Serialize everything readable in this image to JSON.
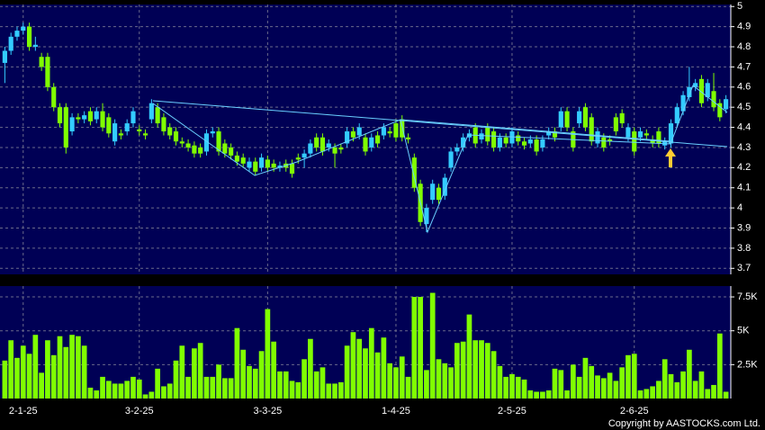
{
  "chart_data": [
    {
      "type": "candlestick",
      "open": [
        4.72,
        4.78,
        4.85,
        4.88,
        4.9,
        4.8,
        4.75,
        4.75,
        4.6,
        4.5,
        4.5,
        4.38,
        4.45,
        4.44,
        4.48,
        4.44,
        4.48,
        4.45,
        4.33,
        4.37,
        4.38,
        4.42,
        4.39,
        4.37,
        4.44,
        4.5,
        4.45,
        4.4,
        4.38,
        4.33,
        4.32,
        4.31,
        4.3,
        4.28,
        4.37,
        4.38,
        4.32,
        4.3,
        4.26,
        4.25,
        4.2,
        4.23,
        4.2,
        4.24,
        4.22,
        4.2,
        4.22,
        4.22,
        4.25,
        4.25,
        4.27,
        4.35,
        4.35,
        4.3,
        4.3,
        4.3,
        4.32,
        4.38,
        4.36,
        4.35,
        4.3,
        4.36,
        4.36,
        4.38,
        4.42,
        4.44,
        4.35,
        4.25,
        4.12,
        3.92,
        4.04,
        4.1,
        4.06,
        4.2,
        4.28,
        4.3,
        4.35,
        4.4,
        4.34,
        4.4,
        4.38,
        4.3,
        4.35,
        4.32,
        4.36,
        4.33,
        4.32,
        4.34,
        4.3,
        4.36,
        4.38,
        4.4,
        4.48,
        4.38,
        4.42,
        4.5,
        4.45,
        4.32,
        4.35,
        4.34,
        4.45,
        4.47,
        4.35,
        4.38,
        4.35,
        4.37,
        4.34,
        4.38,
        4.31,
        4.32,
        4.42,
        4.48,
        4.55,
        4.6,
        4.64,
        4.55,
        4.58,
        4.52,
        4.49
      ],
      "high": [
        4.8,
        4.87,
        4.9,
        4.92,
        4.92,
        4.85,
        4.77,
        4.77,
        4.62,
        4.52,
        4.52,
        4.47,
        4.47,
        4.48,
        4.5,
        4.5,
        4.52,
        4.47,
        4.44,
        4.39,
        4.44,
        4.5,
        4.41,
        4.39,
        4.54,
        4.52,
        4.47,
        4.42,
        4.4,
        4.35,
        4.34,
        4.33,
        4.32,
        4.39,
        4.4,
        4.4,
        4.34,
        4.32,
        4.28,
        4.27,
        4.25,
        4.25,
        4.27,
        4.26,
        4.24,
        4.23,
        4.24,
        4.24,
        4.27,
        4.29,
        4.34,
        4.37,
        4.37,
        4.34,
        4.32,
        4.32,
        4.4,
        4.4,
        4.42,
        4.37,
        4.37,
        4.38,
        4.42,
        4.4,
        4.44,
        4.46,
        4.37,
        4.27,
        4.14,
        4.02,
        4.14,
        4.12,
        4.17,
        4.3,
        4.32,
        4.37,
        4.39,
        4.42,
        4.39,
        4.42,
        4.4,
        4.37,
        4.37,
        4.4,
        4.38,
        4.35,
        4.36,
        4.36,
        4.36,
        4.4,
        4.4,
        4.5,
        4.5,
        4.4,
        4.5,
        4.52,
        4.47,
        4.4,
        4.37,
        4.36,
        4.47,
        4.49,
        4.42,
        4.4,
        4.4,
        4.39,
        4.36,
        4.4,
        4.35,
        4.44,
        4.52,
        4.58,
        4.7,
        4.64,
        4.66,
        4.64,
        4.67,
        4.54,
        4.56
      ],
      "low": [
        4.62,
        4.76,
        4.83,
        4.86,
        4.78,
        4.78,
        4.68,
        4.58,
        4.48,
        4.4,
        4.27,
        4.36,
        4.42,
        4.42,
        4.41,
        4.42,
        4.38,
        4.35,
        4.31,
        4.34,
        4.36,
        4.4,
        4.36,
        4.34,
        4.42,
        4.4,
        4.36,
        4.34,
        4.31,
        4.3,
        4.28,
        4.25,
        4.25,
        4.26,
        4.35,
        4.26,
        4.25,
        4.24,
        4.21,
        4.2,
        4.18,
        4.16,
        4.18,
        4.18,
        4.18,
        4.18,
        4.18,
        4.15,
        4.22,
        4.2,
        4.25,
        4.28,
        4.26,
        4.28,
        4.2,
        4.27,
        4.3,
        4.33,
        4.34,
        4.26,
        4.28,
        4.3,
        4.34,
        4.35,
        4.33,
        4.33,
        4.32,
        4.08,
        3.91,
        3.88,
        4.02,
        4.02,
        4.04,
        4.18,
        4.26,
        4.28,
        4.33,
        4.3,
        4.32,
        4.31,
        4.28,
        4.28,
        4.3,
        4.3,
        4.31,
        4.29,
        4.3,
        4.26,
        4.28,
        4.34,
        4.33,
        4.38,
        4.38,
        4.28,
        4.4,
        4.38,
        4.31,
        4.3,
        4.28,
        4.31,
        4.36,
        4.4,
        4.33,
        4.26,
        4.33,
        4.34,
        4.3,
        4.3,
        4.29,
        4.3,
        4.4,
        4.46,
        4.53,
        4.58,
        4.5,
        4.53,
        4.48,
        4.43,
        4.47
      ],
      "close": [
        4.78,
        4.85,
        4.88,
        4.9,
        4.8,
        4.81,
        4.7,
        4.6,
        4.5,
        4.42,
        4.3,
        4.45,
        4.44,
        4.46,
        4.43,
        4.48,
        4.4,
        4.37,
        4.42,
        4.36,
        4.42,
        4.48,
        4.38,
        4.36,
        4.52,
        4.42,
        4.38,
        4.36,
        4.33,
        4.32,
        4.3,
        4.27,
        4.27,
        4.37,
        4.38,
        4.28,
        4.27,
        4.26,
        4.23,
        4.22,
        4.23,
        4.18,
        4.25,
        4.2,
        4.2,
        4.21,
        4.2,
        4.17,
        4.24,
        4.27,
        4.32,
        4.3,
        4.28,
        4.32,
        4.27,
        4.29,
        4.38,
        4.35,
        4.4,
        4.28,
        4.35,
        4.32,
        4.4,
        4.37,
        4.35,
        4.35,
        4.34,
        4.1,
        3.93,
        4,
        4.12,
        4.04,
        4.15,
        4.28,
        4.3,
        4.35,
        4.37,
        4.32,
        4.37,
        4.33,
        4.3,
        4.35,
        4.32,
        4.38,
        4.33,
        4.31,
        4.34,
        4.28,
        4.34,
        4.38,
        4.35,
        4.48,
        4.4,
        4.3,
        4.48,
        4.4,
        4.33,
        4.38,
        4.3,
        4.33,
        4.38,
        4.42,
        4.4,
        4.28,
        4.38,
        4.36,
        4.32,
        4.32,
        4.33,
        4.42,
        4.5,
        4.56,
        4.6,
        4.62,
        4.52,
        4.62,
        4.5,
        4.45,
        4.54
      ],
      "up_color": "#33ccff",
      "down_color": "#80ff00",
      "ylim": [
        3.67,
        5.01
      ],
      "yticks": [
        5,
        4.9,
        4.8,
        4.7,
        4.6,
        4.5,
        4.4,
        4.3,
        4.2,
        4.1,
        4,
        3.9,
        3.8,
        3.7
      ],
      "grid": true
    },
    {
      "type": "bar",
      "categories": [
        null,
        null,
        null,
        "2-1-25",
        null,
        null,
        null,
        null,
        null,
        null,
        null,
        null,
        null,
        null,
        null,
        null,
        null,
        null,
        null,
        null,
        null,
        null,
        "3-2-25",
        null,
        null,
        null,
        null,
        null,
        null,
        null,
        null,
        null,
        null,
        null,
        null,
        null,
        null,
        null,
        null,
        null,
        null,
        null,
        null,
        "3-3-25",
        null,
        null,
        null,
        null,
        null,
        null,
        null,
        null,
        null,
        null,
        null,
        null,
        null,
        null,
        null,
        null,
        null,
        null,
        null,
        null,
        "1-4-25",
        null,
        null,
        null,
        null,
        null,
        null,
        null,
        null,
        null,
        null,
        null,
        null,
        null,
        null,
        null,
        null,
        null,
        null,
        "2-5-25",
        null,
        null,
        null,
        null,
        null,
        null,
        null,
        null,
        null,
        null,
        null,
        null,
        null,
        null,
        null,
        null,
        null,
        null,
        null,
        "2-6-25",
        null,
        null,
        null,
        null,
        null,
        null,
        null,
        null,
        null,
        null,
        null,
        null,
        null,
        null,
        null
      ],
      "values": [
        2800,
        4300,
        3000,
        3900,
        3300,
        4700,
        1900,
        4300,
        3200,
        4600,
        3800,
        4700,
        4600,
        3900,
        800,
        600,
        1600,
        1300,
        1100,
        1100,
        1300,
        1600,
        1400,
        300,
        500,
        2200,
        900,
        1100,
        2800,
        3900,
        1600,
        3700,
        4100,
        1600,
        1600,
        2500,
        1500,
        1500,
        5200,
        3600,
        2400,
        2200,
        3500,
        6600,
        4200,
        2000,
        2000,
        1300,
        1200,
        2900,
        4400,
        2000,
        2300,
        1100,
        1100,
        1200,
        3900,
        4900,
        4400,
        3700,
        5200,
        3400,
        4500,
        2600,
        2300,
        3100,
        1600,
        7500,
        7500,
        2100,
        7800,
        2900,
        2600,
        2300,
        4100,
        4200,
        6200,
        4300,
        4300,
        4100,
        3500,
        2400,
        1600,
        1800,
        1600,
        1400,
        600,
        500,
        500,
        600,
        2200,
        2100,
        600,
        2500,
        1600,
        3000,
        2400,
        1700,
        1500,
        1900,
        1300,
        2300,
        3200,
        3300,
        600,
        700,
        900,
        1300,
        2900,
        1800,
        1200,
        2000,
        3600,
        1300,
        2000,
        700,
        1000,
        4800,
        500
      ],
      "color": "#80ff00",
      "ylim": [
        0,
        8300
      ],
      "yticks": [
        {
          "value": 2500,
          "label": "2.5K"
        },
        {
          "value": 5000,
          "label": "5K"
        },
        {
          "value": 7500,
          "label": "7.5K"
        }
      ],
      "grid": true
    }
  ],
  "copyright": "Copyright by AASTOCKS.com Ltd."
}
